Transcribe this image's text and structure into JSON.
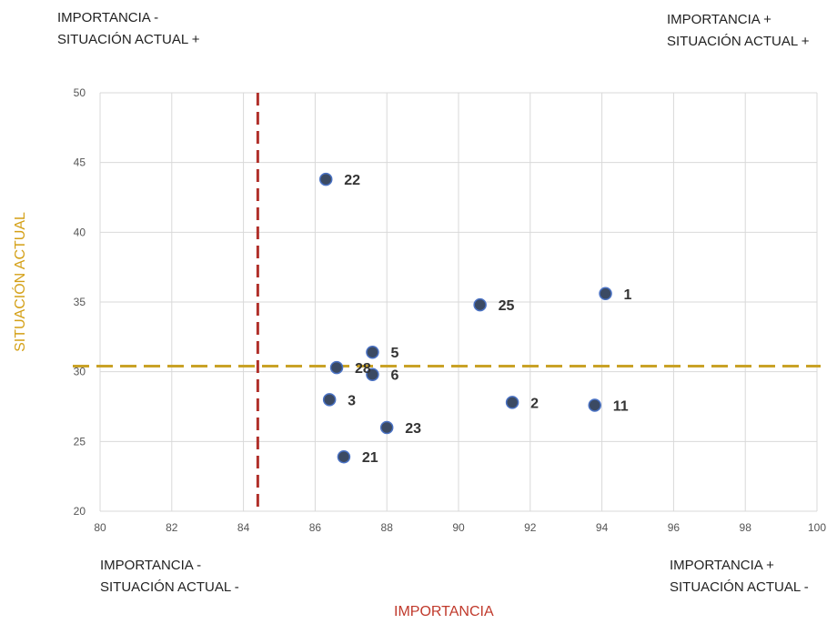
{
  "quadrants": {
    "top_left": [
      "IMPORTANCIA -",
      "SITUACIÓN ACTUAL +"
    ],
    "top_right": [
      "IMPORTANCIA +",
      "SITUACIÓN ACTUAL +"
    ],
    "bottom_left": [
      "IMPORTANCIA -",
      "SITUACIÓN ACTUAL -"
    ],
    "bottom_right": [
      "IMPORTANCIA +",
      "SITUACIÓN ACTUAL -"
    ]
  },
  "chart_data": {
    "type": "scatter",
    "xlabel": "IMPORTANCIA",
    "ylabel": "SITUACIÓN ACTUAL",
    "xlim": [
      80,
      100
    ],
    "ylim": [
      20,
      50
    ],
    "xticks": [
      80,
      82,
      84,
      86,
      88,
      90,
      92,
      94,
      96,
      98,
      100
    ],
    "yticks": [
      20,
      25,
      30,
      35,
      40,
      45,
      50
    ],
    "grid": true,
    "vline": {
      "x": 84.4,
      "color": "#b0302a",
      "style": "dashed"
    },
    "hline": {
      "y": 30.4,
      "color": "#c9a227",
      "style": "dashed"
    },
    "marker_color": "#3b4a63",
    "marker_edge": "#4a72c4",
    "points": [
      {
        "label": "1",
        "x": 94.1,
        "y": 35.6
      },
      {
        "label": "2",
        "x": 91.5,
        "y": 27.8
      },
      {
        "label": "3",
        "x": 86.4,
        "y": 28.0
      },
      {
        "label": "5",
        "x": 87.6,
        "y": 31.4
      },
      {
        "label": "6",
        "x": 87.6,
        "y": 29.8
      },
      {
        "label": "11",
        "x": 93.8,
        "y": 27.6
      },
      {
        "label": "21",
        "x": 86.8,
        "y": 23.9
      },
      {
        "label": "22",
        "x": 86.3,
        "y": 43.8
      },
      {
        "label": "23",
        "x": 88.0,
        "y": 26.0
      },
      {
        "label": "25",
        "x": 90.6,
        "y": 34.8
      },
      {
        "label": "28",
        "x": 86.6,
        "y": 30.3
      }
    ]
  }
}
